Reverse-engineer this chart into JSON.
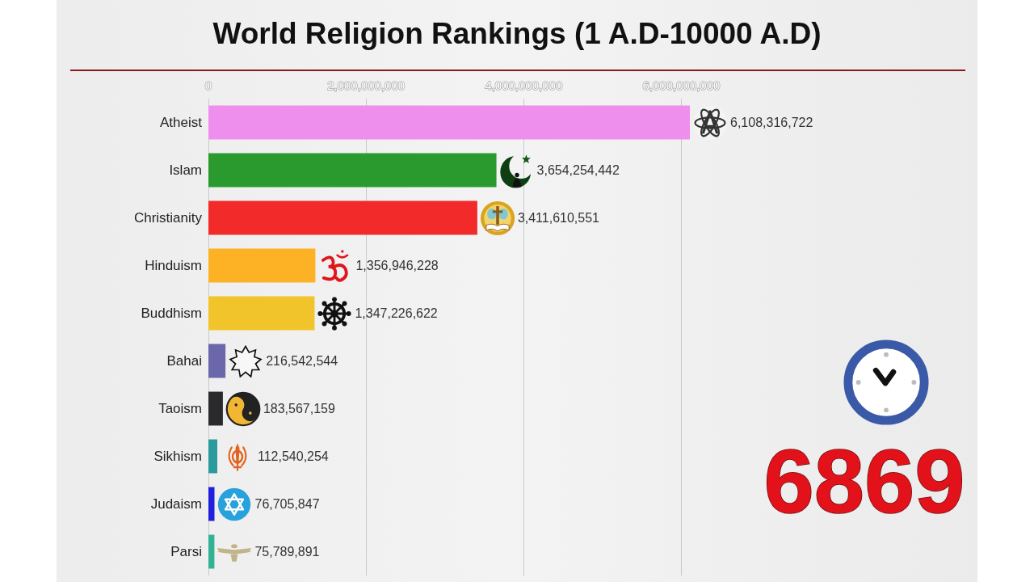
{
  "chart_data": {
    "type": "bar",
    "orientation": "horizontal",
    "title": "World Religion Rankings (1 A.D-10000 A.D)",
    "categories": [
      "Atheist",
      "Islam",
      "Christianity",
      "Hinduism",
      "Buddhism",
      "Bahai",
      "Taoism",
      "Sikhism",
      "Judaism",
      "Parsi"
    ],
    "values": [
      6108316722,
      3654254442,
      3411610551,
      1356946228,
      1347226622,
      216542544,
      183567159,
      112540254,
      76705847,
      75789891
    ],
    "value_labels": [
      "6,108,316,722",
      "3,654,254,442",
      "3,411,610,551",
      "1,356,946,228",
      "1,347,226,622",
      "216,542,544",
      "183,567,159",
      "112,540,254",
      "76,705,847",
      "75,789,891"
    ],
    "colors": [
      "#ee8fee",
      "#2b9a2e",
      "#f22a2a",
      "#fdb124",
      "#f1c42c",
      "#6a68aa",
      "#2a2a2c",
      "#2a9a9c",
      "#2020dc",
      "#32b294"
    ],
    "xlim": [
      0,
      6108316722
    ],
    "xticks": [
      0,
      {
        "value": 2000000000,
        "label": "2,000,000,000"
      },
      {
        "value": 4000000000,
        "label": "4,000,000,000"
      },
      {
        "value": 6000000000,
        "label": "6,000,000,000"
      }
    ],
    "grid": "x",
    "annotations": [
      "6869"
    ]
  }
}
